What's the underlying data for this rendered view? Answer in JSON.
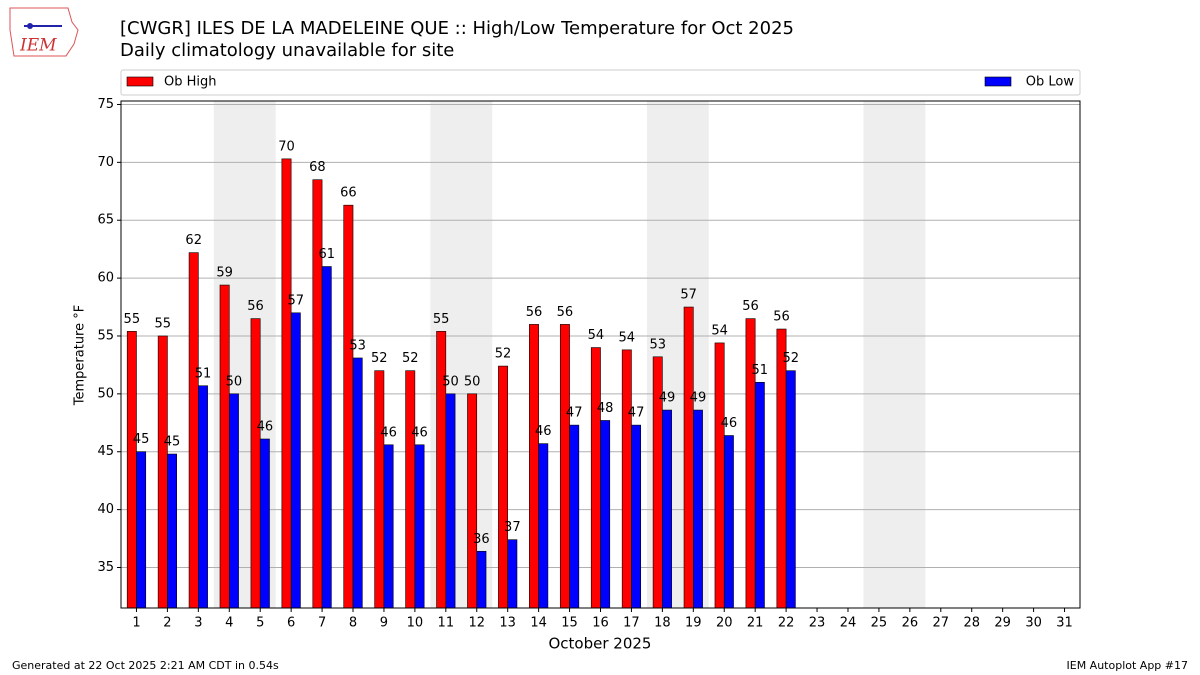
{
  "chart_data": {
    "type": "bar",
    "title": "[CWGR] ILES DE LA MADELEINE  QUE :: High/Low Temperature for Oct 2025",
    "subtitle": "Daily climatology unavailable for site",
    "logo": "IEM",
    "xlabel": "October 2025",
    "ylabel": "Temperature °F",
    "categories": [
      "1",
      "2",
      "3",
      "4",
      "5",
      "6",
      "7",
      "8",
      "9",
      "10",
      "11",
      "12",
      "13",
      "14",
      "15",
      "16",
      "17",
      "18",
      "19",
      "20",
      "21",
      "22",
      "23",
      "24",
      "25",
      "26",
      "27",
      "28",
      "29",
      "30",
      "31"
    ],
    "series": [
      {
        "name": "Ob High",
        "color": "#ff0000",
        "values": [
          55.4,
          55.0,
          62.2,
          59.4,
          56.5,
          70.3,
          68.5,
          66.3,
          52.0,
          52.0,
          55.4,
          50.0,
          52.4,
          56.0,
          56.0,
          54.0,
          53.8,
          53.2,
          57.5,
          54.4,
          56.5,
          55.6,
          null,
          null,
          null,
          null,
          null,
          null,
          null,
          null,
          null
        ],
        "value_labels": [
          "55",
          "55",
          "62",
          "59",
          "56",
          "70",
          "68",
          "66",
          "52",
          "52",
          "55",
          "50",
          "52",
          "56",
          "56",
          "54",
          "54",
          "53",
          "57",
          "54",
          "56",
          "56",
          null,
          null,
          null,
          null,
          null,
          null,
          null,
          null,
          null
        ]
      },
      {
        "name": "Ob Low",
        "color": "#0000ff",
        "values": [
          45.0,
          44.8,
          50.7,
          50.0,
          46.1,
          57.0,
          61.0,
          53.1,
          45.6,
          45.6,
          50.0,
          36.4,
          37.4,
          45.7,
          47.3,
          47.7,
          47.3,
          48.6,
          48.6,
          46.4,
          51.0,
          52.0,
          null,
          null,
          null,
          null,
          null,
          null,
          null,
          null,
          null
        ],
        "value_labels": [
          "45",
          "45",
          "51",
          "50",
          "46",
          "57",
          "61",
          "53",
          "46",
          "46",
          "50",
          "36",
          "37",
          "46",
          "47",
          "48",
          "47",
          "49",
          "49",
          "46",
          "51",
          "52",
          null,
          null,
          null,
          null,
          null,
          null,
          null,
          null,
          null
        ]
      }
    ],
    "ylim": [
      31.5,
      75.3
    ],
    "yticks": [
      35,
      40,
      45,
      50,
      55,
      60,
      65,
      70,
      75
    ],
    "grid": true,
    "footer_left": "Generated at 22 Oct 2025 2:21 AM CDT in 0.54s",
    "footer_right": "IEM Autoplot App #17"
  }
}
